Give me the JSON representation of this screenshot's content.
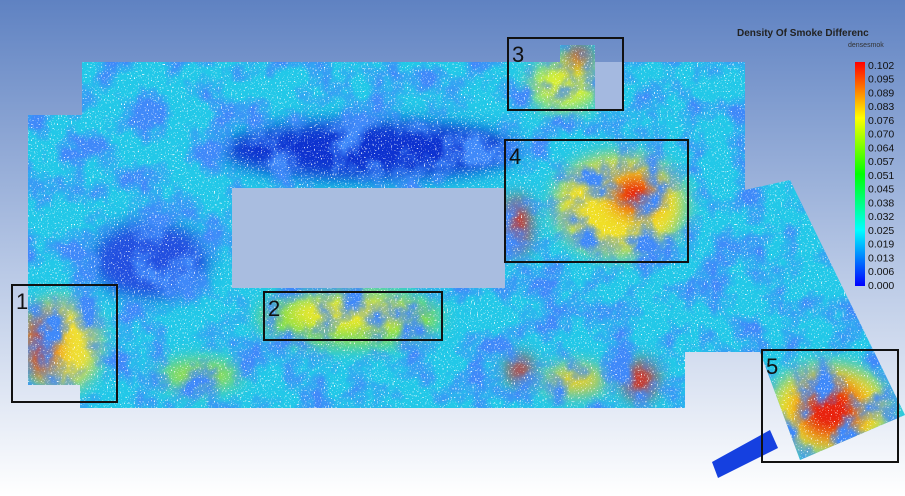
{
  "legend": {
    "title": "Density Of Smoke Differenc",
    "unit": "densesmok",
    "labels": [
      "0.102",
      "0.095",
      "0.089",
      "0.083",
      "0.076",
      "0.070",
      "0.064",
      "0.057",
      "0.051",
      "0.045",
      "0.038",
      "0.032",
      "0.025",
      "0.019",
      "0.013",
      "0.006",
      "0.000"
    ]
  },
  "regions": [
    {
      "label": "1"
    },
    {
      "label": "2"
    },
    {
      "label": "3"
    },
    {
      "label": "4"
    },
    {
      "label": "5"
    }
  ]
}
